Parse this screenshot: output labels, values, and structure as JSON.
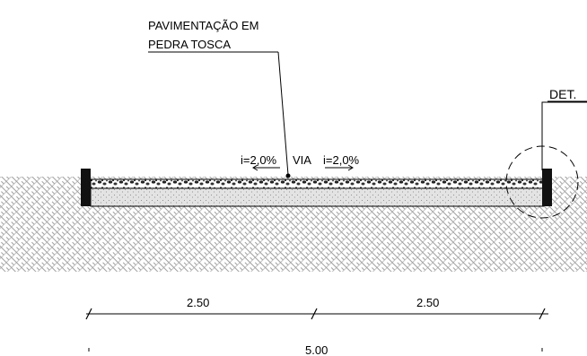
{
  "labels": {
    "pavement_line1": "PAVIMENTAÇÃO EM",
    "pavement_line2": "PEDRA TOSCA",
    "detail_ref": "DET.",
    "slope_left": "i=2,0%",
    "road": "VIA",
    "slope_right": "i=2,0%"
  },
  "dimensions": {
    "left_span": "2.50",
    "right_span": "2.50",
    "total_width": "5.00"
  }
}
